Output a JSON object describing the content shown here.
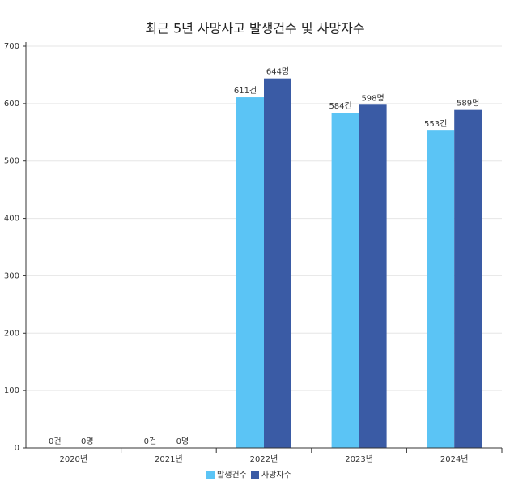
{
  "chart_data": {
    "type": "bar",
    "title": "최근 5년 사망사고 발생건수 및 사망자수",
    "categories": [
      "2020년",
      "2021년",
      "2022년",
      "2023년",
      "2024년"
    ],
    "series": [
      {
        "name": "발생건수",
        "color": "#5bc4f5",
        "values": [
          0,
          0,
          611,
          584,
          553
        ],
        "value_labels": [
          "0건",
          "0건",
          "611건",
          "584건",
          "553건"
        ]
      },
      {
        "name": "사망자수",
        "color": "#3a5ba5",
        "values": [
          0,
          0,
          644,
          598,
          589
        ],
        "value_labels": [
          "0명",
          "0명",
          "644명",
          "598명",
          "589명"
        ]
      }
    ],
    "ylim": [
      0,
      700
    ],
    "yticks": [
      0,
      100,
      200,
      300,
      400,
      500,
      600,
      700
    ],
    "grid": true,
    "legend": "bottom"
  }
}
